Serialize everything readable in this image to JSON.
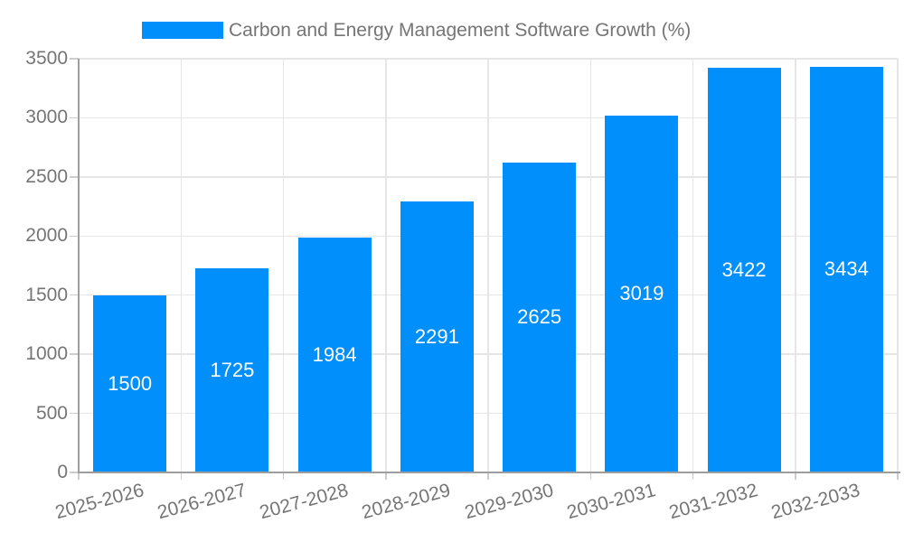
{
  "legend": {
    "label": "Carbon and Energy Management Software Growth (%)"
  },
  "colors": {
    "bar": "#008FFB",
    "gridline": "#e6e6e6",
    "tick_mark": "#cccccc",
    "axis_line": "#9e9e9e",
    "axis_text": "#757575",
    "value_label_text": "#ffffff",
    "background": "#ffffff"
  },
  "chart_data": {
    "type": "bar",
    "title": "Carbon and Energy Management Software Growth (%)",
    "categories": [
      "2025-2026",
      "2026-2027",
      "2027-2028",
      "2028-2029",
      "2029-2030",
      "2030-2031",
      "2031-2032",
      "2032-2033"
    ],
    "values": [
      1500,
      1725,
      1984,
      2291,
      2625,
      3019,
      3422,
      3434
    ],
    "value_labels_shown_inside_bars": true,
    "xlabel": "",
    "ylabel": "",
    "ylim": [
      0,
      3500
    ],
    "yticks": [
      0,
      500,
      1000,
      1500,
      2000,
      2500,
      3000,
      3500
    ],
    "grid": "on",
    "legend_position": "top"
  }
}
